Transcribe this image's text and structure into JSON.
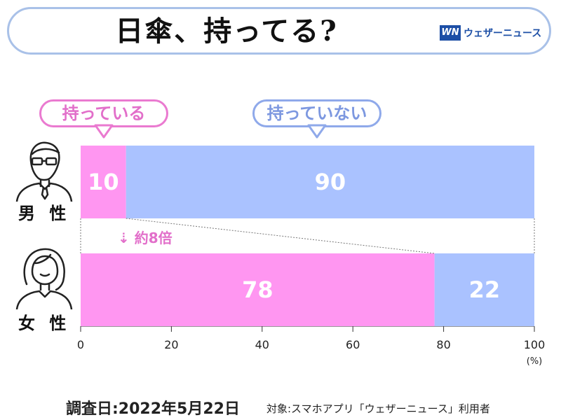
{
  "title": "日傘、持ってる?",
  "logo": {
    "mark": "WN",
    "text": "ウェザーニュース"
  },
  "legend": {
    "have": "持っている",
    "not_have": "持っていない"
  },
  "note": "約8倍",
  "footer": {
    "survey_date": "調査日:2022年5月22日",
    "target": "対象:スマホアプリ「ウェザーニュース」利用者"
  },
  "colors": {
    "have": "#ff96f1",
    "not_have": "#aac2ff",
    "accent": "#e26fca"
  },
  "chart_data": {
    "type": "bar",
    "orientation": "horizontal",
    "stacked": true,
    "categories": [
      "男 性",
      "女 性"
    ],
    "series": [
      {
        "name": "持っている",
        "values": [
          10,
          78
        ]
      },
      {
        "name": "持っていない",
        "values": [
          90,
          22
        ]
      }
    ],
    "x_ticks": [
      0,
      20,
      40,
      60,
      80,
      100
    ],
    "xunit": "(%)",
    "xlim": [
      0,
      100
    ]
  }
}
